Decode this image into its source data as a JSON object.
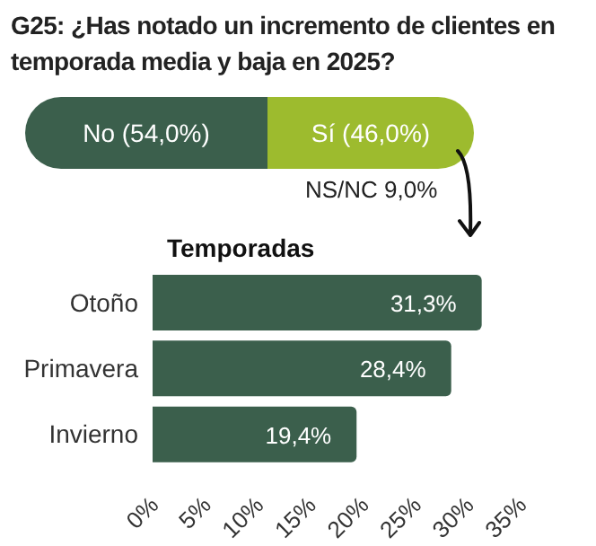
{
  "chart_data": [
    {
      "type": "bar",
      "title": "G25: ¿Has notado un incremento de clientes en temporada media y baja en 2025?",
      "orientation": "horizontal",
      "stacked": true,
      "tick_labels": false,
      "categories": [
        null
      ],
      "series": [
        {
          "color": "#3b5f4c",
          "values": [
            54.0
          ],
          "value_labels": [
            "No (54,0%)"
          ]
        },
        {
          "color": "#9dbb2e",
          "values": [
            46.0
          ],
          "value_labels": [
            "Sí (46,0%)"
          ]
        }
      ],
      "annotations": [
        "NS/NC 9,0%"
      ]
    },
    {
      "type": "bar",
      "title": "Temporadas",
      "orientation": "horizontal",
      "categories": [
        "Otoño",
        "Primavera",
        "Invierno"
      ],
      "values": [
        31.3,
        28.4,
        19.4
      ],
      "color": "#3b5f4c",
      "value_labels": [
        "31,3%",
        "28,4%",
        "19,4%"
      ],
      "xlim": [
        0,
        35
      ],
      "xticks": [
        {
          "value": 0,
          "label": "0%"
        },
        {
          "value": 5,
          "label": "5%"
        },
        {
          "value": 10,
          "label": "10%"
        },
        {
          "value": 15,
          "label": "15%"
        },
        {
          "value": 20,
          "label": "20%"
        },
        {
          "value": 25,
          "label": "25%"
        },
        {
          "value": 30,
          "label": "30%"
        },
        {
          "value": 35,
          "label": "35%"
        }
      ]
    }
  ]
}
